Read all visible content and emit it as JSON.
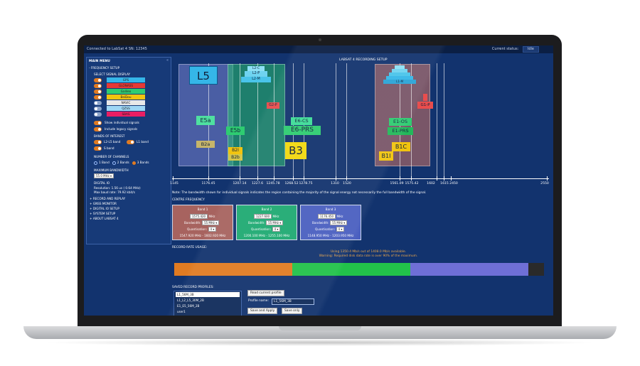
{
  "topbar": {
    "connection": "Connected to LabSat 4 SN: 12345",
    "status_label": "Current status:",
    "status_value": "Idle"
  },
  "sidebar": {
    "title": "MAIN MENU",
    "collapse_icon": "double-chevron-left-icon",
    "freq_setup": "- FREQUENCY SETUP",
    "select_display": "SELECT SIGNAL DISPLAY",
    "signals": [
      {
        "label": "GPS",
        "color": "#35b6e8",
        "on": true
      },
      {
        "label": "GLONASS",
        "color": "#e53935",
        "on": true
      },
      {
        "label": "Galileo",
        "color": "#2ecc71",
        "on": true
      },
      {
        "label": "BeiDou",
        "color": "#f1c40f",
        "on": true
      },
      {
        "label": "NAVIC",
        "color": "#e8e8e8",
        "on": false
      },
      {
        "label": "QZSS",
        "color": "#9ed6f5",
        "on": false
      },
      {
        "label": "SBAS",
        "color": "#e91e63",
        "on": false
      }
    ],
    "show_individual": "Show individual signals",
    "include_legacy": "Include legacy signals",
    "bands_title": "BANDS OF INTEREST",
    "band_l2l5": "L2-L5 band",
    "band_l1": "L1 band",
    "band_s": "S band",
    "channels_title": "NUMBER OF CHANNELS",
    "ch1": "1 Band",
    "ch2": "2 Bands",
    "ch3": "3 Bands",
    "max_bw_title": "MAXIMUM BANDWIDTH",
    "max_bw_value": "55.0 MHz",
    "digital_io": "DIGITAL IO",
    "resolution": "Resolution: 1.56 us ( 0.64 MHz)",
    "max_baud": "Max baud rate: 79.92 kbit/s",
    "menu": [
      "+ RECORD AND REPLAY",
      "+ GNSS MONITOR",
      "+ DIGITAL IO SETUP",
      "+ SYSTEM SETUP",
      "+ ABOUT LABSAT 4"
    ]
  },
  "plot": {
    "title": "LABSAT 4 RECORDING SETUP",
    "ticks": [
      "1145",
      "1176.45",
      "1207.14",
      "1227.6",
      "1245.78",
      "1268.52",
      "1278.75",
      "1310",
      "1520",
      "1561.09",
      "1575.42",
      "1602",
      "1615",
      "2450",
      "2550"
    ],
    "signals": [
      "L5",
      "L2-C",
      "L2-P",
      "L2-M",
      "G2-P",
      "E5a",
      "E5b",
      "E6-CS",
      "E6-PRS",
      "B2a",
      "B2I",
      "B2b",
      "B3",
      "E1-OS",
      "E1-PRS",
      "B1C",
      "B1I",
      "G1-P",
      "L1-M"
    ]
  },
  "note": "Note: The bandwidth shown for individual signals indicates the region containing the majority of the signal energy not necessarily the full bandwidth of the signal.",
  "centre_freq": {
    "title": "CENTRE FREQUENCY",
    "bw_label": "Bandwidth:",
    "q_label": "Quantisation:",
    "mhz": "MHz",
    "bands": [
      {
        "title": "Band 1",
        "freq": "1575.420",
        "bw": "55 MHz",
        "q": "4",
        "range": "1547.920 MHz - 1602.920 MHz",
        "color": "#a7635f"
      },
      {
        "title": "Band 2",
        "freq": "1227.600",
        "bw": "55 MHz",
        "q": "4",
        "range": "1200.100 MHz - 1255.100 MHz",
        "color": "#1faa72"
      },
      {
        "title": "Band 3",
        "freq": "1176.450",
        "bw": "55 MHz",
        "q": "4",
        "range": "1148.950 MHz - 1203.950 MHz",
        "color": "#4a5fc0"
      }
    ]
  },
  "record_rate": {
    "title": "RECORD RATE USAGE:",
    "using": "Using 1350.4 Mb/s out of 1408.0 Mb/s available.",
    "warning": "Warning: Required disk data rate is over 90% of the maximum.",
    "segments": [
      {
        "fraction": 0.32,
        "color": "#e07b22"
      },
      {
        "fraction": 0.32,
        "color": "#22c24a"
      },
      {
        "fraction": 0.32,
        "color": "#6f6fd6"
      }
    ]
  },
  "profiles": {
    "title": "SAVED RECORD PROFILES:",
    "items": [
      "L1_56M_3B",
      "L1_L2_L5_30M_2B",
      "E1_E5_56M_2B",
      "user1"
    ],
    "read_btn": "Read current profile",
    "name_label": "Profile name:",
    "name_value": "L1_56M_3B",
    "save_apply": "Save and Apply",
    "save_only": "Save only"
  }
}
